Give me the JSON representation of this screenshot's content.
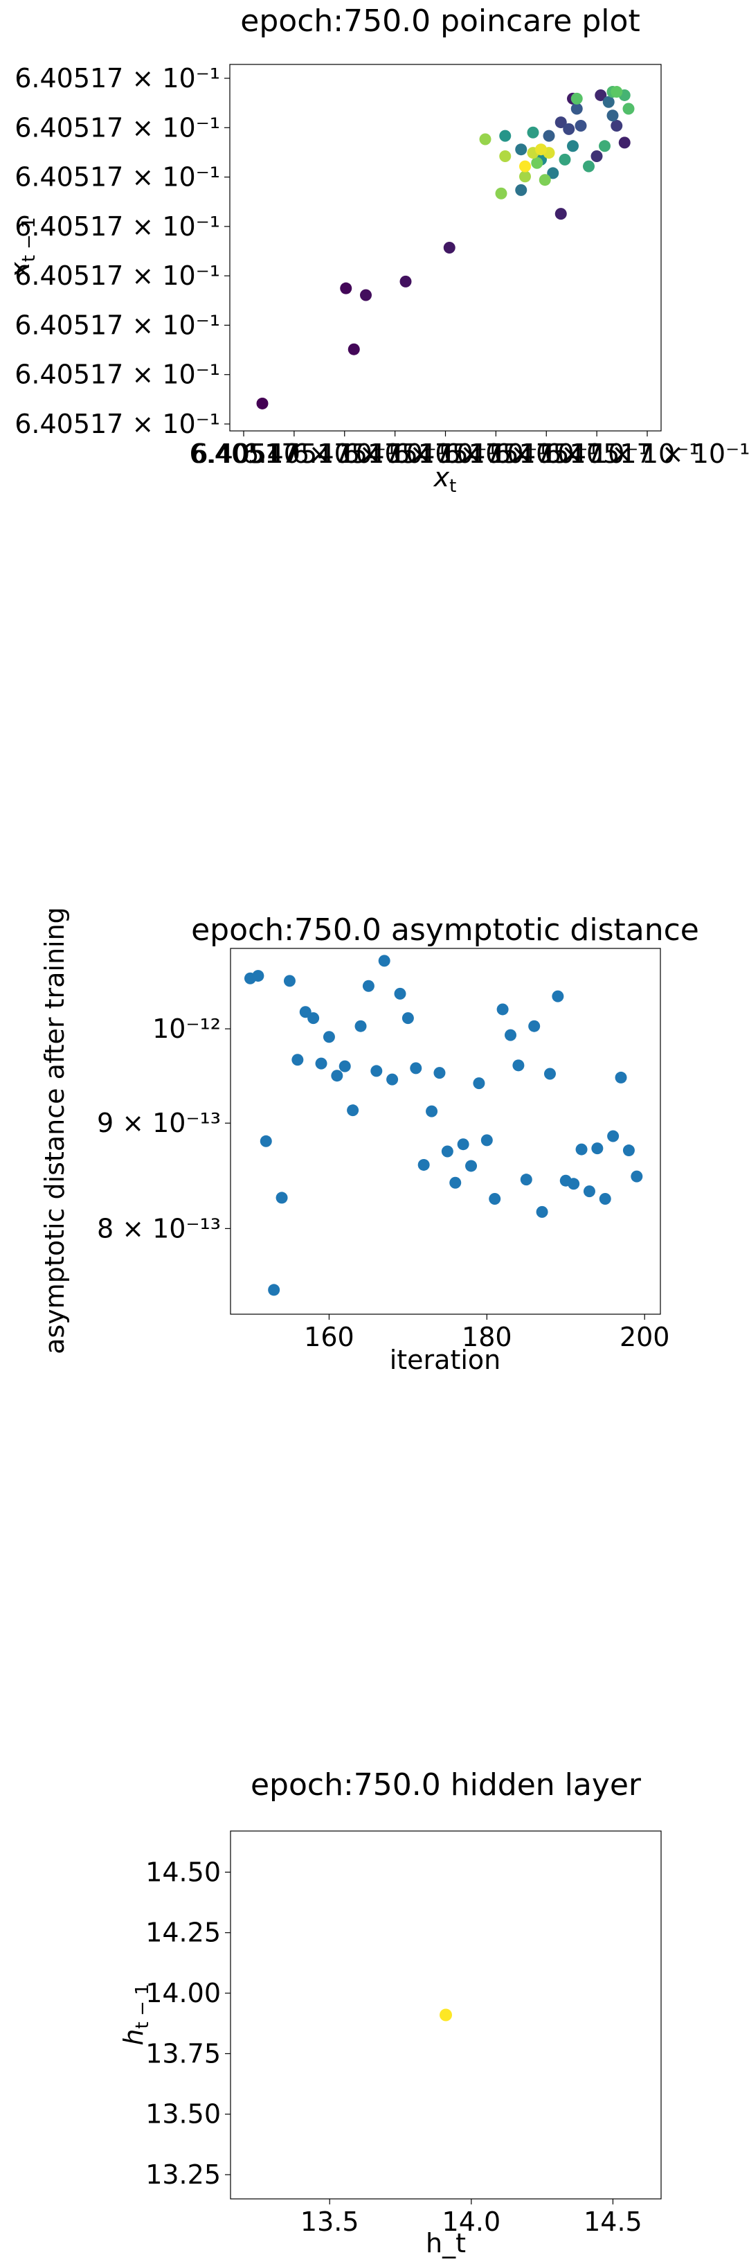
{
  "chart_data": [
    {
      "type": "scatter",
      "title": "epoch:750.0 poincare plot",
      "xlabel": "x_t",
      "ylabel": "x_{t-1}",
      "xlim": [
        0.0,
        1.0
      ],
      "ylim": [
        0.0,
        1.0
      ],
      "x_tick_labels": [
        "6.40517",
        "6.40517 × 10⁻¹",
        "6.40517 × 10⁻¹",
        "6.40517 × 10⁻¹",
        "6.40517 × 10⁻¹",
        "6.40517 × 10⁻¹",
        "6.40517 × 10⁻¹",
        "6.40517 × 10⁻¹",
        "6.40517 × 10⁻¹"
      ],
      "y_tick_labels": [
        "6.40517 × 10⁻¹",
        "6.40517 × 10⁻¹",
        "6.40517 × 10⁻¹",
        "6.40517 × 10⁻¹",
        "6.40517 × 10⁻¹",
        "6.40517 × 10⁻¹",
        "6.40517 × 10⁻¹",
        "6.40517 × 10⁻¹"
      ],
      "colormap": "viridis",
      "points": [
        {
          "x": 0.04,
          "y": 0.04,
          "c": 0.0
        },
        {
          "x": 0.27,
          "y": 0.2,
          "c": 0.02
        },
        {
          "x": 0.25,
          "y": 0.38,
          "c": 0.02
        },
        {
          "x": 0.3,
          "y": 0.36,
          "c": 0.04
        },
        {
          "x": 0.4,
          "y": 0.4,
          "c": 0.05
        },
        {
          "x": 0.51,
          "y": 0.5,
          "c": 0.07
        },
        {
          "x": 0.79,
          "y": 0.6,
          "c": 0.1
        },
        {
          "x": 0.82,
          "y": 0.94,
          "c": 0.08
        },
        {
          "x": 0.89,
          "y": 0.95,
          "c": 0.12
        },
        {
          "x": 0.95,
          "y": 0.81,
          "c": 0.1
        },
        {
          "x": 0.88,
          "y": 0.77,
          "c": 0.15
        },
        {
          "x": 0.93,
          "y": 0.86,
          "c": 0.18
        },
        {
          "x": 0.79,
          "y": 0.87,
          "c": 0.2
        },
        {
          "x": 0.81,
          "y": 0.85,
          "c": 0.22
        },
        {
          "x": 0.84,
          "y": 0.86,
          "c": 0.25
        },
        {
          "x": 0.83,
          "y": 0.91,
          "c": 0.28
        },
        {
          "x": 0.76,
          "y": 0.83,
          "c": 0.3
        },
        {
          "x": 0.92,
          "y": 0.89,
          "c": 0.32
        },
        {
          "x": 0.91,
          "y": 0.93,
          "c": 0.35
        },
        {
          "x": 0.69,
          "y": 0.67,
          "c": 0.38
        },
        {
          "x": 0.69,
          "y": 0.79,
          "c": 0.4
        },
        {
          "x": 0.77,
          "y": 0.72,
          "c": 0.42
        },
        {
          "x": 0.82,
          "y": 0.8,
          "c": 0.45
        },
        {
          "x": 0.74,
          "y": 0.76,
          "c": 0.48
        },
        {
          "x": 0.65,
          "y": 0.83,
          "c": 0.52
        },
        {
          "x": 0.72,
          "y": 0.84,
          "c": 0.55
        },
        {
          "x": 0.8,
          "y": 0.76,
          "c": 0.58
        },
        {
          "x": 0.86,
          "y": 0.74,
          "c": 0.6
        },
        {
          "x": 0.9,
          "y": 0.8,
          "c": 0.62
        },
        {
          "x": 0.95,
          "y": 0.95,
          "c": 0.65
        },
        {
          "x": 0.92,
          "y": 0.96,
          "c": 0.68
        },
        {
          "x": 0.96,
          "y": 0.91,
          "c": 0.7
        },
        {
          "x": 0.83,
          "y": 0.94,
          "c": 0.72
        },
        {
          "x": 0.93,
          "y": 0.96,
          "c": 0.74
        },
        {
          "x": 0.73,
          "y": 0.75,
          "c": 0.78
        },
        {
          "x": 0.75,
          "y": 0.7,
          "c": 0.8
        },
        {
          "x": 0.64,
          "y": 0.66,
          "c": 0.82
        },
        {
          "x": 0.6,
          "y": 0.82,
          "c": 0.84
        },
        {
          "x": 0.7,
          "y": 0.71,
          "c": 0.86
        },
        {
          "x": 0.65,
          "y": 0.77,
          "c": 0.88
        },
        {
          "x": 0.72,
          "y": 0.78,
          "c": 0.92
        },
        {
          "x": 0.76,
          "y": 0.78,
          "c": 0.95
        },
        {
          "x": 0.74,
          "y": 0.79,
          "c": 0.97
        },
        {
          "x": 0.7,
          "y": 0.74,
          "c": 1.0
        }
      ]
    },
    {
      "type": "scatter",
      "title": "epoch:750.0 asymptotic distance",
      "xlabel": "iteration",
      "ylabel": "asymptotic distance after training",
      "yscale": "log",
      "xlim": [
        147.5,
        202
      ],
      "ylim": [
        7.27e-13,
        1.094e-12
      ],
      "x_ticks": [
        160,
        180,
        200
      ],
      "x_tick_labels": [
        "160",
        "180",
        "200"
      ],
      "y_ticks": [
        8e-13,
        9e-13,
        1e-12
      ],
      "y_tick_labels": [
        "8 × 10⁻¹³",
        "9 × 10⁻¹³",
        "10⁻¹²"
      ],
      "color": "#1f77b4",
      "x": [
        150,
        151,
        152,
        153,
        154,
        155,
        156,
        157,
        158,
        159,
        160,
        161,
        162,
        163,
        164,
        165,
        166,
        167,
        168,
        169,
        170,
        171,
        172,
        173,
        174,
        175,
        176,
        177,
        178,
        179,
        180,
        181,
        182,
        183,
        184,
        185,
        186,
        187,
        188,
        189,
        190,
        191,
        192,
        193,
        194,
        195,
        196,
        197,
        198,
        199
      ],
      "y": [
        1.058e-12,
        1.061e-12,
        8.82e-13,
        7.47e-13,
        8.28e-13,
        1.055e-12,
        9.66e-13,
        1.019e-12,
        1.012e-12,
        9.62e-13,
        9.91e-13,
        9.49e-13,
        9.59e-13,
        9.13e-13,
        1.003e-12,
        1.049e-12,
        9.54e-13,
        1.079e-12,
        9.45e-13,
        1.04e-12,
        1.012e-12,
        9.57e-13,
        8.59e-13,
        9.12e-13,
        9.52e-13,
        8.72e-13,
        8.42e-13,
        8.79e-13,
        8.58e-13,
        9.41e-13,
        8.83e-13,
        8.27e-13,
        1.022e-12,
        9.93e-13,
        9.6e-13,
        8.45e-13,
        1.003e-12,
        8.15e-13,
        9.51e-13,
        1.037e-12,
        8.44e-13,
        8.41e-13,
        8.74e-13,
        8.34e-13,
        8.75e-13,
        8.27e-13,
        8.87e-13,
        9.47e-13,
        8.73e-13,
        8.48e-13
      ]
    },
    {
      "type": "scatter",
      "title": "epoch:750.0 hidden layer",
      "xlabel": "h_t",
      "ylabel": "h_{t-1}",
      "xlim": [
        13.15,
        14.67
      ],
      "ylim": [
        13.15,
        14.67
      ],
      "x_ticks": [
        13.5,
        14.0,
        14.5
      ],
      "x_tick_labels": [
        "13.5",
        "14.0",
        "14.5"
      ],
      "y_ticks": [
        13.25,
        13.5,
        13.75,
        14.0,
        14.25,
        14.5
      ],
      "y_tick_labels": [
        "13.25",
        "13.50",
        "13.75",
        "14.00",
        "14.25",
        "14.50"
      ],
      "color": "#fde725",
      "x": [
        13.91
      ],
      "y": [
        13.91
      ]
    }
  ]
}
